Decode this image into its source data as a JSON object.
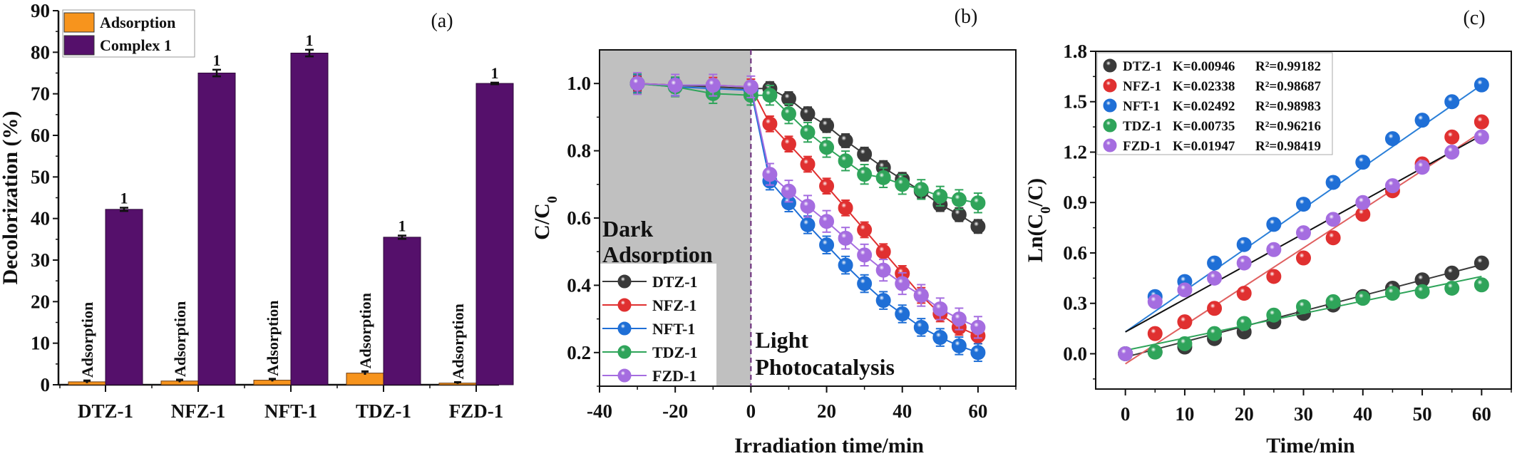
{
  "chart_data": [
    {
      "panel": "a",
      "type": "bar",
      "panel_label": "(a)",
      "title": "",
      "xlabel": "",
      "ylabel": "Decolorization (%)",
      "ylim": [
        0,
        90
      ],
      "yticks": [
        0,
        10,
        20,
        30,
        40,
        50,
        60,
        70,
        80,
        90
      ],
      "categories": [
        "DTZ-1",
        "NFZ-1",
        "NFT-1",
        "TDZ-1",
        "FZD-1"
      ],
      "legend_position": "top-left",
      "series": [
        {
          "name": "Adsorption",
          "color": "#f7941d",
          "values": [
            0.7,
            0.9,
            1.1,
            2.8,
            0.4
          ],
          "errors": [
            0.3,
            0.3,
            0.3,
            0.4,
            0.2
          ],
          "bar_labels": [
            "Adsorption",
            "Adsorption",
            "Adsorption",
            "Adsorption",
            "Adsorption"
          ]
        },
        {
          "name": "Complex 1",
          "color": "#55106b",
          "values": [
            42.2,
            75.0,
            79.8,
            35.5,
            72.5
          ],
          "errors": [
            0.4,
            0.8,
            0.8,
            0.4,
            0.2
          ],
          "bar_labels": [
            "1",
            "1",
            "1",
            "1",
            "1"
          ]
        }
      ]
    },
    {
      "panel": "b",
      "type": "line",
      "panel_label": "(b)",
      "title": "",
      "xlabel": "Irradiation time/min",
      "ylabel": "C/C0",
      "xlim": [
        -40,
        70
      ],
      "ylim": [
        0.1,
        1.1
      ],
      "xticks": [
        -40,
        -20,
        0,
        20,
        40,
        60
      ],
      "yticks": [
        0.2,
        0.4,
        0.6,
        0.8,
        1.0
      ],
      "shaded_region": {
        "from": -40,
        "to": 0,
        "color": "#c0c0c0"
      },
      "divider_x": 0,
      "annotations": [
        {
          "text_lines": [
            "Dark",
            "Adsorption"
          ],
          "region": "dark"
        },
        {
          "text_lines": [
            "Light",
            "Photocatalysis"
          ],
          "region": "light"
        }
      ],
      "legend_position": "bottom-left",
      "x": [
        -30,
        -20,
        -10,
        0,
        5,
        10,
        15,
        20,
        25,
        30,
        35,
        40,
        45,
        50,
        55,
        60
      ],
      "series": [
        {
          "name": "DTZ-1",
          "color": "#3a3a3a",
          "values": [
            1.0,
            0.995,
            0.99,
            0.985,
            0.985,
            0.955,
            0.91,
            0.875,
            0.83,
            0.79,
            0.75,
            0.715,
            0.68,
            0.64,
            0.61,
            0.575
          ]
        },
        {
          "name": "NFZ-1",
          "color": "#e03030",
          "values": [
            1.0,
            0.995,
            0.995,
            0.99,
            0.88,
            0.82,
            0.76,
            0.695,
            0.63,
            0.565,
            0.5,
            0.435,
            0.37,
            0.315,
            0.275,
            0.25
          ]
        },
        {
          "name": "NFT-1",
          "color": "#1f6fd6",
          "values": [
            1.0,
            0.99,
            0.985,
            0.98,
            0.71,
            0.645,
            0.58,
            0.52,
            0.46,
            0.405,
            0.355,
            0.315,
            0.275,
            0.245,
            0.22,
            0.2
          ]
        },
        {
          "name": "TDZ-1",
          "color": "#2fa45a",
          "values": [
            1.0,
            0.99,
            0.97,
            0.965,
            0.965,
            0.91,
            0.855,
            0.81,
            0.77,
            0.73,
            0.72,
            0.7,
            0.685,
            0.665,
            0.655,
            0.645
          ]
        },
        {
          "name": "FZD-1",
          "color": "#a56de0",
          "values": [
            1.0,
            0.995,
            0.995,
            0.99,
            0.73,
            0.68,
            0.635,
            0.59,
            0.54,
            0.49,
            0.445,
            0.405,
            0.37,
            0.33,
            0.3,
            0.275
          ]
        }
      ]
    },
    {
      "panel": "c",
      "type": "scatter",
      "panel_label": "(c)",
      "title": "",
      "xlabel": "Time/min",
      "ylabel": "Ln(C0/C)",
      "xlim": [
        -5,
        65
      ],
      "ylim": [
        -0.21,
        1.8
      ],
      "xticks": [
        0,
        10,
        20,
        30,
        40,
        50,
        60
      ],
      "yticks": [
        0.0,
        0.3,
        0.6,
        0.9,
        1.2,
        1.5,
        1.8
      ],
      "legend_position": "top-left",
      "x": [
        0,
        5,
        10,
        15,
        20,
        25,
        30,
        35,
        40,
        45,
        50,
        55,
        60
      ],
      "series": [
        {
          "name": "DTZ-1",
          "K": "K=0.00946",
          "R2": "R²=0.99182",
          "color": "#3a3a3a",
          "fit_color": "#3a3a3a",
          "values": [
            0.0,
            0.01,
            0.04,
            0.09,
            0.13,
            0.19,
            0.24,
            0.29,
            0.34,
            0.39,
            0.44,
            0.48,
            0.54
          ],
          "fit": {
            "x0": 0,
            "y0": -0.02,
            "x1": 60,
            "y1": 0.53
          }
        },
        {
          "name": "NFZ-1",
          "K": "K=0.02338",
          "R2": "R²=0.98687",
          "color": "#e03030",
          "fit_color": "#e06060",
          "values": [
            0.0,
            0.12,
            0.19,
            0.27,
            0.36,
            0.46,
            0.57,
            0.69,
            0.83,
            0.97,
            1.13,
            1.29,
            1.38
          ],
          "fit": {
            "x0": 0,
            "y0": -0.06,
            "x1": 60,
            "y1": 1.32
          }
        },
        {
          "name": "NFT-1",
          "K": "K=0.02492",
          "R2": "R²=0.98983",
          "color": "#1f6fd6",
          "fit_color": "#2a7fd8",
          "values": [
            0.0,
            0.34,
            0.43,
            0.54,
            0.65,
            0.77,
            0.89,
            1.02,
            1.14,
            1.28,
            1.39,
            1.5,
            1.6
          ],
          "fit": {
            "x0": 0,
            "y0": 0.13,
            "x1": 60,
            "y1": 1.6
          }
        },
        {
          "name": "TDZ-1",
          "K": "K=0.00735",
          "R2": "R²=0.96216",
          "color": "#2fa45a",
          "fit_color": "#2fa45a",
          "values": [
            0.0,
            0.01,
            0.06,
            0.12,
            0.18,
            0.23,
            0.28,
            0.31,
            0.33,
            0.36,
            0.37,
            0.39,
            0.41
          ],
          "fit": {
            "x0": 0,
            "y0": 0.02,
            "x1": 60,
            "y1": 0.46
          }
        },
        {
          "name": "FZD-1",
          "K": "K=0.01947",
          "R2": "R²=0.98419",
          "color": "#a56de0",
          "fit_color": "#111111",
          "values": [
            0.0,
            0.31,
            0.38,
            0.45,
            0.54,
            0.62,
            0.72,
            0.8,
            0.9,
            1.0,
            1.11,
            1.2,
            1.29
          ],
          "fit": {
            "x0": 0,
            "y0": 0.13,
            "x1": 60,
            "y1": 1.3
          }
        }
      ]
    }
  ]
}
